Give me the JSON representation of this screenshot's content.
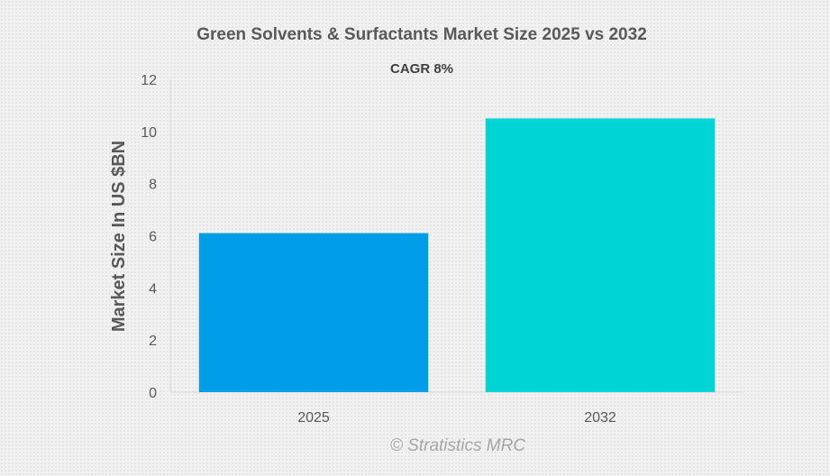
{
  "chart_data": {
    "type": "bar",
    "title": "Green Solvents & Surfactants Market Size 2025 vs 2032",
    "subtitle": "CAGR 8%",
    "categories": [
      "2025",
      "2032"
    ],
    "values": [
      6.1,
      10.5
    ],
    "colors": [
      "#009ee8",
      "#00d4d4"
    ],
    "xlabel": "",
    "ylabel": "Market Size In US $BN",
    "ylim": [
      0,
      12
    ],
    "yticks": [
      0,
      2,
      4,
      6,
      8,
      10,
      12
    ],
    "grid": false,
    "legend": "none"
  },
  "watermark": "© Stratistics MRC"
}
